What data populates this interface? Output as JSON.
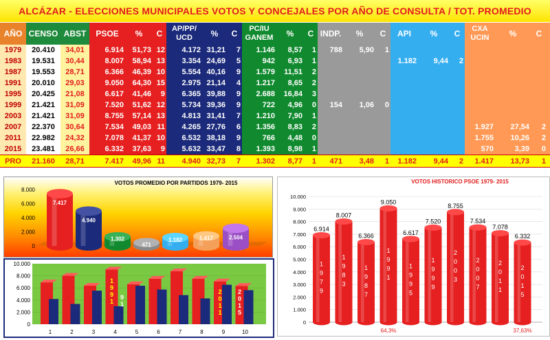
{
  "title": "ALCÁZAR - ELECCIONES MUNICIPALES VOTOS  Y CONCEJALES POR AÑO DE CONSULTA / TOT. PROMEDIO",
  "table": {
    "headers": {
      "year": "AÑO",
      "censo": "CENSO",
      "abst": "ABST",
      "psoe": "PSOE",
      "ap": "AP/PP/ UCD",
      "pciu": "PC/IU GANEM",
      "indp": "INDP.",
      "api": "API",
      "cxa": "CXA UCIN",
      "pct": "%",
      "c": "C"
    },
    "rows": [
      {
        "year": "1979",
        "censo": "20.410",
        "abst": "34,01",
        "psoe": [
          "6.914",
          "51,73",
          "12"
        ],
        "ap": [
          "4.172",
          "31,21",
          "7"
        ],
        "pc": [
          "1.146",
          "8,57",
          "1"
        ],
        "indp": [
          "788",
          "5,90",
          "1"
        ],
        "api": [
          "",
          "",
          ""
        ],
        "cxa": [
          "",
          "",
          ""
        ]
      },
      {
        "year": "1983",
        "censo": "19.531",
        "abst": "30,44",
        "psoe": [
          "8.007",
          "58,94",
          "13"
        ],
        "ap": [
          "3.354",
          "24,69",
          "5"
        ],
        "pc": [
          "942",
          "6,93",
          "1"
        ],
        "indp": [
          "",
          "",
          ""
        ],
        "api": [
          "1.182",
          "9,44",
          "2"
        ],
        "cxa": [
          "",
          "",
          ""
        ]
      },
      {
        "year": "1987",
        "censo": "19.553",
        "abst": "28,71",
        "psoe": [
          "6.366",
          "46,39",
          "10"
        ],
        "ap": [
          "5.554",
          "40,16",
          "9"
        ],
        "pc": [
          "1.579",
          "11,51",
          "2"
        ],
        "indp": [
          "",
          "",
          ""
        ],
        "api": [
          "",
          "",
          ""
        ],
        "cxa": [
          "",
          "",
          ""
        ]
      },
      {
        "year": "1991",
        "censo": "20.010",
        "abst": "29,03",
        "psoe": [
          "9.050",
          "64,30",
          "15"
        ],
        "ap": [
          "2.975",
          "21,14",
          "4"
        ],
        "pc": [
          "1.217",
          "8,65",
          "2"
        ],
        "indp": [
          "",
          "",
          ""
        ],
        "api": [
          "",
          "",
          ""
        ],
        "cxa": [
          "",
          "",
          ""
        ]
      },
      {
        "year": "1995",
        "censo": "20.425",
        "abst": "21,08",
        "psoe": [
          "6.617",
          "41,46",
          "9"
        ],
        "ap": [
          "6.365",
          "39,88",
          "9"
        ],
        "pc": [
          "2.688",
          "16,84",
          "3"
        ],
        "indp": [
          "",
          "",
          ""
        ],
        "api": [
          "",
          "",
          ""
        ],
        "cxa": [
          "",
          "",
          ""
        ]
      },
      {
        "year": "1999",
        "censo": "21.421",
        "abst": "31,09",
        "psoe": [
          "7.520",
          "51,62",
          "12"
        ],
        "ap": [
          "5.734",
          "39,36",
          "9"
        ],
        "pc": [
          "722",
          "4,96",
          "0"
        ],
        "indp": [
          "154",
          "1,06",
          "0"
        ],
        "api": [
          "",
          "",
          ""
        ],
        "cxa": [
          "",
          "",
          ""
        ]
      },
      {
        "year": "2003",
        "censo": "21.421",
        "abst": "31,09",
        "psoe": [
          "8.755",
          "57,14",
          "13"
        ],
        "ap": [
          "4.813",
          "31,41",
          "7"
        ],
        "pc": [
          "1.210",
          "7,90",
          "1"
        ],
        "indp": [
          "",
          "",
          ""
        ],
        "api": [
          "",
          "",
          ""
        ],
        "cxa": [
          "",
          "",
          ""
        ]
      },
      {
        "year": "2007",
        "censo": "22.370",
        "abst": "30,64",
        "psoe": [
          "7.534",
          "49,03",
          "11"
        ],
        "ap": [
          "4.265",
          "27,76",
          "6"
        ],
        "pc": [
          "1.356",
          "8,83",
          "2"
        ],
        "indp": [
          "",
          "",
          ""
        ],
        "api": [
          "",
          "",
          ""
        ],
        "cxa": [
          "1.927",
          "27,54",
          "2"
        ]
      },
      {
        "year": "2011",
        "censo": "22.982",
        "abst": "24,32",
        "psoe": [
          "7.078",
          "41,37",
          "10"
        ],
        "ap": [
          "6.532",
          "38,18",
          "9"
        ],
        "pc": [
          "766",
          "4,48",
          "0"
        ],
        "indp": [
          "",
          "",
          ""
        ],
        "api": [
          "",
          "",
          ""
        ],
        "cxa": [
          "1.755",
          "10,26",
          "2"
        ]
      },
      {
        "year": "2015",
        "censo": "23.481",
        "abst": "26,66",
        "psoe": [
          "6.332",
          "37,63",
          "9"
        ],
        "ap": [
          "5.632",
          "33,47",
          "8"
        ],
        "pc": [
          "1.393",
          "8,98",
          "1"
        ],
        "indp": [
          "",
          "",
          ""
        ],
        "api": [
          "",
          "",
          ""
        ],
        "cxa": [
          "570",
          "3,39",
          "0"
        ]
      }
    ],
    "pro": {
      "year": "PRO",
      "censo": "21.160",
      "abst": "28,71",
      "psoe": [
        "7.417",
        "49,96",
        "11"
      ],
      "ap": [
        "4.940",
        "32,73",
        "7"
      ],
      "pc": [
        "1.302",
        "8,77",
        "1"
      ],
      "indp": [
        "471",
        "3,48",
        "1"
      ],
      "api": [
        "1.182",
        "9,44",
        "2"
      ],
      "cxa": [
        "1.417",
        "13,73",
        "1"
      ]
    }
  },
  "colors": {
    "psoe": "#e62020",
    "ap": "#1b2a7a",
    "pc": "#118a2f",
    "indp": "#9a9a9a",
    "api": "#35aef0",
    "cxa": "#f5a05a",
    "cxa2": "#9b4fc4"
  },
  "chart_data": [
    {
      "type": "bar",
      "title": "VOTOS PROMEDIO POR PARTIDOS  1979- 2015",
      "ylim": [
        0,
        8000
      ],
      "yticks": [
        "0",
        "2.000",
        "4.000",
        "6.000",
        "8.000"
      ],
      "values": [
        7417,
        4940,
        1302,
        471,
        1182,
        1417,
        2504
      ],
      "labels": [
        "7.417",
        "4.940",
        "1.302",
        "471",
        "1.182",
        "1.417",
        "2.504"
      ],
      "bar_colors": [
        "#e62020",
        "#1b2a7a",
        "#118a2f",
        "#8a8a8a",
        "#35aef0",
        "#f5a05a",
        "#9b4fc4"
      ]
    },
    {
      "type": "bar",
      "title": "",
      "ylim": [
        0,
        10000
      ],
      "yticks": [
        "0",
        "2.000",
        "4.000",
        "6.000",
        "8.000",
        "10.000"
      ],
      "categories": [
        "1",
        "2",
        "3",
        "4",
        "5",
        "6",
        "7",
        "8",
        "9",
        "10"
      ],
      "series": [
        {
          "values": [
            6914,
            8007,
            6366,
            9050,
            6617,
            7520,
            8755,
            7534,
            7078,
            6332
          ]
        },
        {
          "values": [
            4172,
            3354,
            5554,
            2975,
            6365,
            5734,
            4813,
            4265,
            6532,
            5632
          ]
        }
      ],
      "annotations": [
        {
          "category": "4",
          "text": "1991"
        },
        {
          "category": "4b",
          "text": "91"
        },
        {
          "category": "9",
          "text": "2011"
        },
        {
          "category": "10",
          "text": "2015"
        }
      ]
    },
    {
      "type": "bar",
      "title": "VOTOS HISTORICO PSOE 1979- 2015",
      "ylim": [
        0,
        10000
      ],
      "yticks": [
        "0",
        "1.000",
        "2.000",
        "3.000",
        "4.000",
        "5.000",
        "6.000",
        "7.000",
        "8.000",
        "9.000",
        "10.000"
      ],
      "categories": [
        "1979",
        "1983",
        "1987",
        "1991",
        "1995",
        "1999",
        "2003",
        "2007",
        "2011",
        "2015"
      ],
      "values": [
        6914,
        8007,
        6366,
        9050,
        6617,
        7520,
        8755,
        7534,
        7078,
        6332
      ],
      "labels": [
        "6.914",
        "8.007",
        "6.366",
        "9.050",
        "6.617",
        "7.520",
        "8.755",
        "7.534",
        "7.078",
        "6.332"
      ],
      "annotations": [
        "64,3%",
        "37,63%"
      ]
    }
  ]
}
